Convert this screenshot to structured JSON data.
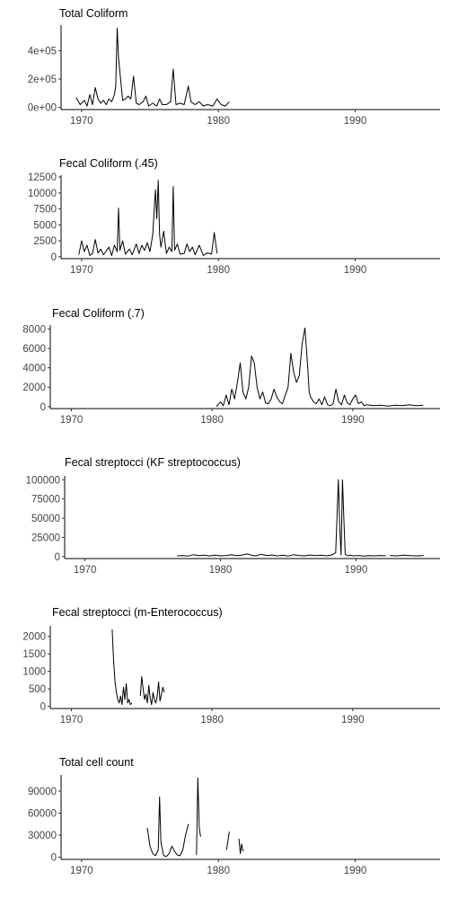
{
  "chart_data": [
    {
      "type": "line",
      "title": "Total Coliform",
      "xlabel": "",
      "ylabel": "",
      "xlim": [
        1968.5,
        1996.2
      ],
      "ylim": [
        -15000,
        580000
      ],
      "x_ticks": [
        1970,
        1980,
        1990
      ],
      "x_tick_labels": [
        "1970",
        "1980",
        "1990"
      ],
      "y_ticks": [
        0,
        200000,
        400000
      ],
      "y_tick_labels": [
        "0e+00",
        "2e+05",
        "4e+05"
      ],
      "grid": false,
      "segments": [
        {
          "x": [
            1969.6,
            1969.9,
            1970.2,
            1970.4,
            1970.6,
            1970.8,
            1971.0,
            1971.2,
            1971.4,
            1971.6,
            1971.8,
            1972.0,
            1972.2,
            1972.4,
            1972.5,
            1972.6,
            1972.7,
            1972.8,
            1973.0,
            1973.2,
            1973.4,
            1973.6,
            1973.8,
            1974.0,
            1974.2,
            1974.5,
            1974.7,
            1974.9,
            1975.2,
            1975.5,
            1975.7,
            1975.9,
            1976.2,
            1976.5,
            1976.7,
            1976.9,
            1977.2,
            1977.5,
            1977.8,
            1978.0,
            1978.3,
            1978.6,
            1978.9,
            1979.2,
            1979.6,
            1979.9,
            1980.2,
            1980.5,
            1980.8
          ],
          "y": [
            70000,
            20000,
            50000,
            10000,
            90000,
            20000,
            140000,
            60000,
            30000,
            50000,
            20000,
            60000,
            40000,
            90000,
            150000,
            560000,
            350000,
            250000,
            50000,
            60000,
            80000,
            60000,
            220000,
            30000,
            20000,
            40000,
            80000,
            10000,
            30000,
            10000,
            60000,
            20000,
            20000,
            40000,
            270000,
            20000,
            30000,
            20000,
            150000,
            40000,
            20000,
            40000,
            10000,
            20000,
            10000,
            60000,
            20000,
            10000,
            40000
          ]
        }
      ]
    },
    {
      "type": "line",
      "title": "Fecal Coliform (.45)",
      "xlabel": "",
      "ylabel": "",
      "xlim": [
        1968.5,
        1996.2
      ],
      "ylim": [
        -300,
        12800
      ],
      "x_ticks": [
        1970,
        1980,
        1990
      ],
      "x_tick_labels": [
        "1970",
        "1980",
        "1990"
      ],
      "y_ticks": [
        0,
        2500,
        5000,
        7500,
        10000,
        12500
      ],
      "y_tick_labels": [
        "0",
        "2500",
        "5000",
        "7500",
        "10000",
        "12500"
      ],
      "grid": false,
      "segments": [
        {
          "x": [
            1969.8,
            1970.0,
            1970.2,
            1970.4,
            1970.6,
            1970.8,
            1971.0,
            1971.2,
            1971.4,
            1971.6,
            1971.8,
            1972.0,
            1972.2,
            1972.4,
            1972.6,
            1972.7,
            1972.8,
            1973.0,
            1973.2,
            1973.5,
            1973.7,
            1974.0,
            1974.2,
            1974.4,
            1974.6,
            1974.8,
            1975.0,
            1975.2,
            1975.4,
            1975.5,
            1975.6,
            1975.7,
            1975.8,
            1976.0,
            1976.2,
            1976.4,
            1976.6,
            1976.7,
            1976.8,
            1977.0,
            1977.2,
            1977.5,
            1977.7,
            1977.9,
            1978.1,
            1978.3,
            1978.6,
            1978.9,
            1979.2,
            1979.5,
            1979.7,
            1979.9
          ],
          "y": [
            300,
            2500,
            800,
            1800,
            200,
            500,
            2700,
            600,
            1200,
            300,
            900,
            1500,
            200,
            1800,
            800,
            7600,
            1000,
            2500,
            400,
            1200,
            300,
            2000,
            500,
            1800,
            1000,
            2200,
            800,
            3500,
            10500,
            6000,
            12000,
            3500,
            1500,
            4000,
            500,
            1500,
            800,
            11000,
            1000,
            2000,
            400,
            500,
            2000,
            800,
            1500,
            300,
            1800,
            200,
            600,
            400,
            3800,
            500
          ]
        }
      ]
    },
    {
      "type": "line",
      "title": "Fecal Coliform (.7)",
      "xlabel": "",
      "ylabel": "",
      "xlim": [
        1968.5,
        1996.2
      ],
      "ylim": [
        -200,
        8400
      ],
      "x_ticks": [
        1970,
        1980,
        1990
      ],
      "x_tick_labels": [
        "1970",
        "1980",
        "1990"
      ],
      "y_ticks": [
        0,
        2000,
        4000,
        6000,
        8000
      ],
      "y_tick_labels": [
        "0",
        "2000",
        "4000",
        "6000",
        "8000"
      ],
      "grid": false,
      "segments": [
        {
          "x": [
            1980.3,
            1980.6,
            1980.8,
            1981.0,
            1981.2,
            1981.4,
            1981.6,
            1981.8,
            1982.0,
            1982.2,
            1982.4,
            1982.6,
            1982.8,
            1983.0,
            1983.2,
            1983.4,
            1983.6,
            1983.8,
            1984.0,
            1984.2,
            1984.4,
            1984.6,
            1984.8,
            1985.0,
            1985.2,
            1985.4,
            1985.6,
            1985.8,
            1986.0,
            1986.2,
            1986.4,
            1986.6,
            1986.8,
            1986.9,
            1987.0,
            1987.2,
            1987.4,
            1987.6,
            1987.8,
            1988.0,
            1988.2,
            1988.4,
            1988.6,
            1988.8,
            1989.0,
            1989.2,
            1989.4,
            1989.6,
            1989.8,
            1990.0,
            1990.2,
            1990.4,
            1990.6,
            1990.8,
            1991.0,
            1991.5,
            1992.0,
            1992.5,
            1993.0,
            1993.5,
            1994.0,
            1994.5,
            1995.0
          ],
          "y": [
            0,
            500,
            100,
            1200,
            200,
            1800,
            800,
            2500,
            4500,
            1500,
            800,
            2000,
            5200,
            4500,
            2000,
            800,
            1500,
            400,
            300,
            800,
            1800,
            1000,
            500,
            300,
            1200,
            2000,
            5500,
            3500,
            2500,
            3200,
            6500,
            8100,
            4000,
            1500,
            1000,
            500,
            300,
            800,
            200,
            1000,
            200,
            100,
            300,
            1800,
            500,
            200,
            1200,
            400,
            200,
            800,
            1200,
            300,
            500,
            100,
            200,
            100,
            150,
            50,
            150,
            100,
            200,
            100,
            150
          ]
        }
      ]
    },
    {
      "type": "line",
      "title": "Fecal streptocci (KF streptococcus)",
      "xlabel": "",
      "ylabel": "",
      "xlim": [
        1968.5,
        1996.2
      ],
      "ylim": [
        -2500,
        105000
      ],
      "x_ticks": [
        1970,
        1980,
        1990
      ],
      "x_tick_labels": [
        "1970",
        "1980",
        "1990"
      ],
      "y_ticks": [
        0,
        25000,
        50000,
        75000,
        100000
      ],
      "y_tick_labels": [
        "0",
        "25000",
        "50000",
        "75000",
        "100000"
      ],
      "grid": false,
      "segments": [
        {
          "x": [
            1976.8,
            1977.2,
            1977.6,
            1978.0,
            1978.4,
            1978.8,
            1979.2,
            1979.6,
            1980.0,
            1980.4,
            1980.8,
            1981.2,
            1981.6,
            1982.0,
            1982.3,
            1982.6,
            1983.0,
            1983.4,
            1983.8,
            1984.2,
            1984.6,
            1985.0,
            1985.4,
            1985.8,
            1986.2,
            1986.6,
            1987.0,
            1987.4,
            1987.8,
            1988.2,
            1988.5,
            1988.7,
            1988.8,
            1988.9,
            1989.0,
            1989.1,
            1989.2,
            1989.4,
            1989.6,
            1989.8,
            1990.2,
            1990.6,
            1991.0,
            1991.4,
            1991.8,
            1992.2
          ],
          "y": [
            1000,
            1500,
            800,
            2500,
            1200,
            1800,
            900,
            2000,
            1000,
            1500,
            2500,
            1200,
            2000,
            3500,
            1800,
            1000,
            3000,
            1500,
            2000,
            1000,
            1800,
            800,
            2500,
            1500,
            1000,
            2000,
            1200,
            1800,
            1000,
            2000,
            5000,
            100000,
            40000,
            2000,
            100000,
            50000,
            3000,
            1000,
            2000,
            1000,
            1500,
            800,
            1200,
            1000,
            1500,
            1000
          ]
        },
        {
          "x": [
            1992.5,
            1993.0,
            1993.5,
            1994.0,
            1994.5,
            1995.0
          ],
          "y": [
            1500,
            1000,
            1800,
            1200,
            1000,
            1500
          ]
        }
      ]
    },
    {
      "type": "line",
      "title": "Fecal streptocci (m-Enterococcus)",
      "xlabel": "",
      "ylabel": "",
      "xlim": [
        1968.5,
        1996.2
      ],
      "ylim": [
        -60,
        2300
      ],
      "x_ticks": [
        1970,
        1980,
        1990
      ],
      "x_tick_labels": [
        "1970",
        "1980",
        "1990"
      ],
      "y_ticks": [
        0,
        500,
        1000,
        1500,
        2000
      ],
      "y_tick_labels": [
        "0",
        "500",
        "1000",
        "1500",
        "2000"
      ],
      "grid": false,
      "segments": [
        {
          "x": [
            1972.9,
            1973.0,
            1973.1,
            1973.2,
            1973.3,
            1973.4,
            1973.5,
            1973.6,
            1973.7,
            1973.8,
            1973.9,
            1974.0,
            1974.1,
            1974.2,
            1974.3
          ],
          "y": [
            2200,
            1300,
            700,
            400,
            200,
            100,
            300,
            50,
            550,
            200,
            650,
            100,
            200,
            50,
            100
          ]
        },
        {
          "x": [
            1974.9,
            1975.0,
            1975.1,
            1975.2,
            1975.3,
            1975.4,
            1975.5,
            1975.6,
            1975.7,
            1975.8,
            1975.9,
            1976.0,
            1976.1,
            1976.2,
            1976.3,
            1976.4,
            1976.5,
            1976.6
          ],
          "y": [
            300,
            850,
            500,
            200,
            350,
            100,
            600,
            250,
            50,
            400,
            200,
            100,
            300,
            700,
            150,
            350,
            550,
            400
          ]
        }
      ]
    },
    {
      "type": "line",
      "title": "Total cell count",
      "xlabel": "",
      "ylabel": "",
      "xlim": [
        1968.5,
        1996.2
      ],
      "ylim": [
        -3000,
        112000
      ],
      "x_ticks": [
        1970,
        1980,
        1990
      ],
      "x_tick_labels": [
        "1970",
        "1980",
        "1990"
      ],
      "y_ticks": [
        0,
        30000,
        60000,
        90000
      ],
      "y_tick_labels": [
        "0",
        "30000",
        "60000",
        "90000"
      ],
      "grid": false,
      "segments": [
        {
          "x": [
            1974.8,
            1975.0,
            1975.2,
            1975.4,
            1975.6,
            1975.7,
            1975.8,
            1976.0,
            1976.2,
            1976.4,
            1976.6,
            1976.8,
            1977.0,
            1977.2,
            1977.4,
            1977.6,
            1977.8
          ],
          "y": [
            40000,
            15000,
            5000,
            2000,
            10000,
            82000,
            20000,
            2000,
            1000,
            5000,
            15000,
            8000,
            3000,
            2000,
            10000,
            30000,
            45000
          ]
        },
        {
          "x": [
            1978.4,
            1978.5,
            1978.6,
            1978.7
          ],
          "y": [
            3000,
            108000,
            40000,
            28000
          ]
        },
        {
          "x": [
            1980.6,
            1980.8
          ],
          "y": [
            10000,
            35000
          ]
        },
        {
          "x": [
            1981.5,
            1981.6,
            1981.7,
            1981.8
          ],
          "y": [
            25000,
            5000,
            18000,
            8000
          ]
        }
      ]
    }
  ]
}
